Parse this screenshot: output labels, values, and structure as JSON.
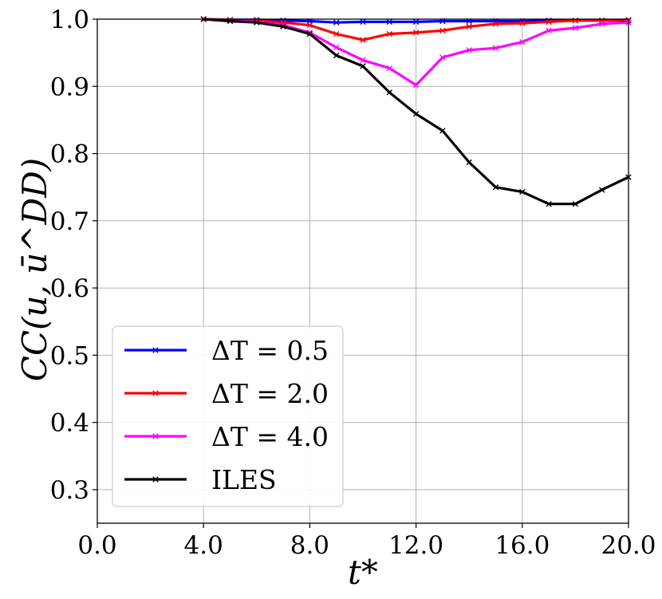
{
  "chart_data": {
    "type": "line",
    "title": "",
    "xlabel": "t*",
    "ylabel": "CC(u, ū^DD)",
    "xlim": [
      0,
      20
    ],
    "ylim": [
      0.25,
      1.0
    ],
    "xticks": [
      0,
      4,
      8,
      12,
      16,
      20
    ],
    "xtick_labels": [
      "0.0",
      "4.0",
      "8.0",
      "12.0",
      "16.0",
      "20.0"
    ],
    "yticks": [
      0.3,
      0.4,
      0.5,
      0.6,
      0.7,
      0.8,
      0.9,
      1.0
    ],
    "ytick_labels": [
      "0.3",
      "0.4",
      "0.5",
      "0.6",
      "0.7",
      "0.8",
      "0.9",
      "1.0"
    ],
    "grid": true,
    "legend_position": "lower-left",
    "series": [
      {
        "name": "ΔT = 0.5",
        "color": "#0000ff",
        "x": [
          4,
          5,
          6,
          7,
          8,
          9,
          10,
          11,
          12,
          13,
          14,
          15,
          16,
          17,
          18,
          19,
          20
        ],
        "y": [
          1.0,
          0.999,
          0.999,
          0.998,
          0.997,
          0.995,
          0.996,
          0.996,
          0.996,
          0.997,
          0.997,
          0.997,
          0.997,
          0.998,
          0.998,
          0.998,
          0.998
        ]
      },
      {
        "name": "ΔT = 2.0",
        "color": "#ff0000",
        "x": [
          4,
          5,
          6,
          7,
          8,
          9,
          10,
          11,
          12,
          13,
          14,
          15,
          16,
          17,
          18,
          19,
          20
        ],
        "y": [
          1.0,
          0.999,
          0.998,
          0.995,
          0.991,
          0.978,
          0.969,
          0.978,
          0.98,
          0.983,
          0.989,
          0.993,
          0.994,
          0.996,
          0.998,
          0.998,
          0.999
        ]
      },
      {
        "name": "ΔT = 4.0",
        "color": "#ff00ff",
        "x": [
          4,
          5,
          6,
          7,
          8,
          9,
          10,
          11,
          12,
          13,
          14,
          15,
          16,
          17,
          18,
          19,
          20
        ],
        "y": [
          1.0,
          0.998,
          0.996,
          0.991,
          0.98,
          0.958,
          0.939,
          0.927,
          0.902,
          0.943,
          0.954,
          0.957,
          0.966,
          0.983,
          0.987,
          0.993,
          0.995
        ]
      },
      {
        "name": "ILES",
        "color": "#000000",
        "x": [
          4,
          5,
          6,
          7,
          8,
          9,
          10,
          11,
          12,
          13,
          14,
          15,
          16,
          17,
          18,
          19,
          20
        ],
        "y": [
          1.0,
          0.997,
          0.995,
          0.989,
          0.978,
          0.946,
          0.93,
          0.891,
          0.859,
          0.834,
          0.787,
          0.75,
          0.743,
          0.725,
          0.725,
          0.746,
          0.765
        ]
      }
    ]
  }
}
